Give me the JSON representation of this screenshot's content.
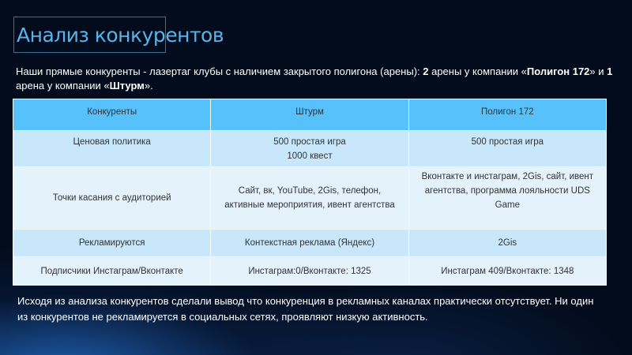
{
  "slide": {
    "title": "Анализ конкурентов",
    "intro": {
      "part1": "Наши прямые конкуренты - лазертаг клубы с наличием закрытого полигона (арены): ",
      "num1": "2",
      "part2": " арены у компании «",
      "company1": "Полигон 172",
      "part3": "» и ",
      "num2": "1",
      "part4": " арена у компании «",
      "company2": "Штурм",
      "part5": "»."
    },
    "table": {
      "headers": [
        "Конкуренты",
        "Штурм",
        "Полигон 172"
      ],
      "rows": [
        {
          "label": "Ценовая политика",
          "shturm": [
            "500 простая игра",
            "1000 квест"
          ],
          "poligon": "500 простая игра"
        },
        {
          "label": "Точки касания с аудиторией",
          "shturm": "Сайт, вк, YouTube, 2Gis, телефон, активные мероприятия, ивент агентства",
          "poligon": "Вконтакте и инстаграм, 2Gis, сайт, ивент агентства, программа лояльности UDS Game"
        },
        {
          "label": "Рекламируются",
          "shturm": "Контекстная реклама (Яндекс)",
          "poligon": "2Gis"
        },
        {
          "label": "Подписчики Инстаграм/Вконтакте",
          "shturm": "Инстаграм:0/Вконтакте: 1325",
          "poligon": "Инстаграм 409/Вконтакте: 1348"
        }
      ]
    },
    "conclusion": "Исходя из анализа конкурентов сделали вывод что конкуренция в рекламных каналах практически отсутствует. Ни один из конкурентов не рекламируется в социальных сетях, проявляют низкую активность."
  },
  "colors": {
    "title": "#5ab4ea",
    "header_bg": "#56c1fb",
    "row_dark": "#c8e7fb",
    "row_light": "#e4f2fc",
    "background": "#030c1c"
  }
}
